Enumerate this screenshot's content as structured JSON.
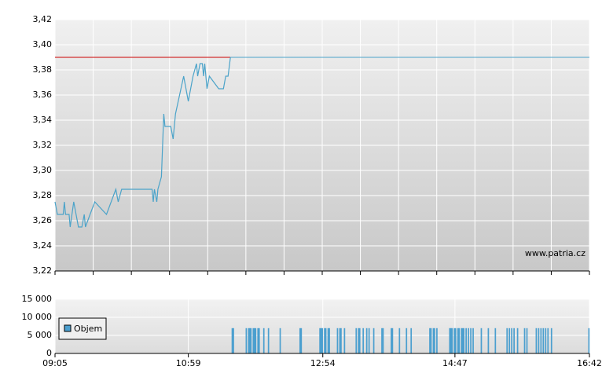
{
  "chart_data": [
    {
      "type": "line",
      "watermark": "www.patria.cz",
      "color": "#4ba3c9",
      "x": [
        "09:05",
        "09:07",
        "09:12",
        "09:13",
        "09:14",
        "09:17",
        "09:18",
        "09:21",
        "09:23",
        "09:25",
        "09:28",
        "09:30",
        "09:31",
        "09:35",
        "09:39",
        "09:49",
        "09:55",
        "09:57",
        "09:59",
        "10:02",
        "10:28",
        "10:29",
        "10:30",
        "10:32",
        "10:33",
        "10:36",
        "10:38",
        "10:39",
        "10:44",
        "10:46",
        "10:48",
        "10:55",
        "10:59",
        "11:03",
        "11:06",
        "11:07",
        "11:09",
        "11:11",
        "11:12",
        "11:13",
        "11:15",
        "11:17",
        "11:25",
        "11:29",
        "11:31",
        "11:33",
        "11:35"
      ],
      "values": [
        3.275,
        3.265,
        3.265,
        3.275,
        3.265,
        3.265,
        3.255,
        3.275,
        3.265,
        3.255,
        3.255,
        3.265,
        3.255,
        3.265,
        3.275,
        3.265,
        3.28,
        3.285,
        3.275,
        3.285,
        3.285,
        3.275,
        3.285,
        3.275,
        3.285,
        3.295,
        3.345,
        3.335,
        3.335,
        3.325,
        3.345,
        3.375,
        3.355,
        3.375,
        3.385,
        3.375,
        3.385,
        3.385,
        3.375,
        3.385,
        3.365,
        3.375,
        3.365,
        3.365,
        3.375,
        3.375,
        3.39
      ],
      "reference_line": {
        "value": 3.39,
        "color": "#cc0000"
      },
      "xlim": [
        "09:05",
        "16:42"
      ],
      "ylim": [
        3.22,
        3.42
      ],
      "yticks": [
        {
          "value": 3.22,
          "label": "3,22"
        },
        {
          "value": 3.24,
          "label": "3,24"
        },
        {
          "value": 3.26,
          "label": "3,26"
        },
        {
          "value": 3.28,
          "label": "3,28"
        },
        {
          "value": 3.3,
          "label": "3,30"
        },
        {
          "value": 3.32,
          "label": "3,32"
        },
        {
          "value": 3.34,
          "label": "3,34"
        },
        {
          "value": 3.36,
          "label": "3,36"
        },
        {
          "value": 3.38,
          "label": "3,38"
        },
        {
          "value": 3.4,
          "label": "3,40"
        },
        {
          "value": 3.42,
          "label": "3,42"
        }
      ],
      "grid": true
    },
    {
      "type": "bar",
      "x": [
        "11:36",
        "11:37",
        "11:48",
        "11:50",
        "11:51",
        "11:52",
        "11:54",
        "11:55",
        "11:56",
        "11:58",
        "11:59",
        "12:03",
        "12:07",
        "12:17",
        "12:34",
        "12:35",
        "12:51",
        "12:52",
        "12:53",
        "12:55",
        "12:56",
        "12:58",
        "12:59",
        "13:06",
        "13:08",
        "13:09",
        "13:12",
        "13:22",
        "13:24",
        "13:25",
        "13:28",
        "13:31",
        "13:33",
        "13:37",
        "13:44",
        "13:45",
        "13:52",
        "13:53",
        "13:59",
        "14:05",
        "14:09",
        "14:25",
        "14:26",
        "14:28",
        "14:29",
        "14:31",
        "14:42",
        "14:43",
        "14:44",
        "14:46",
        "14:47",
        "14:49",
        "14:50",
        "14:52",
        "14:53",
        "14:54",
        "14:56",
        "14:58",
        "15:00",
        "15:02",
        "15:09",
        "15:15",
        "15:21",
        "15:31",
        "15:33",
        "15:35",
        "15:37",
        "15:40",
        "15:46",
        "15:48",
        "15:56",
        "15:58",
        "16:00",
        "16:02",
        "16:04",
        "16:06",
        "16:09",
        "16:41"
      ],
      "series": [
        {
          "name": "Objem",
          "color": "#4b9fcf",
          "values": [
            7000,
            7000,
            7000,
            7000,
            7000,
            7000,
            7000,
            7000,
            7000,
            7000,
            7000,
            7000,
            7000,
            7000,
            7000,
            7000,
            7000,
            7000,
            7000,
            7000,
            7000,
            7000,
            7000,
            7000,
            7000,
            7000,
            7000,
            7000,
            7000,
            7000,
            7000,
            7000,
            7000,
            7000,
            7000,
            7000,
            7000,
            7000,
            7000,
            7000,
            7000,
            7000,
            7000,
            7000,
            7000,
            7000,
            7000,
            7000,
            7000,
            7000,
            7000,
            7000,
            7000,
            7000,
            7000,
            7000,
            7000,
            7000,
            7000,
            7000,
            7000,
            7000,
            7000,
            7000,
            7000,
            7000,
            7000,
            7000,
            7000,
            7000,
            7000,
            7000,
            7000,
            7000,
            7000,
            7000,
            7000,
            7000
          ]
        }
      ],
      "xlim": [
        "09:05",
        "16:42"
      ],
      "xticks": [
        "09:05",
        "10:59",
        "12:54",
        "14:47",
        "16:42"
      ],
      "ylim": [
        0,
        15000
      ],
      "yticks": [
        0,
        {
          "value": 5000,
          "label": "5 000"
        },
        {
          "value": 10000,
          "label": "10 000"
        },
        {
          "value": 15000,
          "label": "15 000"
        }
      ],
      "grid": true
    }
  ]
}
